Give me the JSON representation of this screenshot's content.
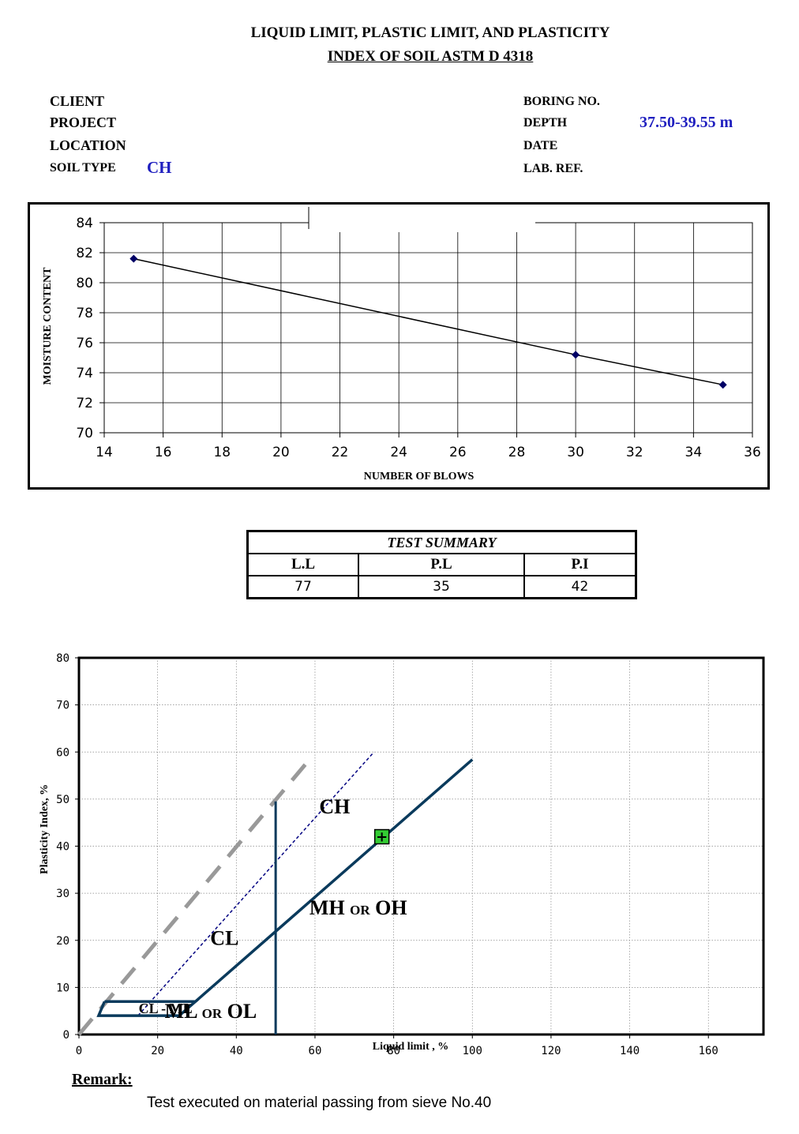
{
  "header": {
    "title_line1": "LIQUID LIMIT, PLASTIC LIMIT, AND PLASTICITY",
    "title_line2": "INDEX OF SOIL ASTM  D 4318"
  },
  "info": {
    "client_label": "CLIENT",
    "project_label": "PROJECT",
    "location_label": "LOCATION",
    "soil_type_label": "SOIL TYPE",
    "soil_type_value": "CH",
    "boring_label": "BORING NO.",
    "depth_label": "DEPTH",
    "depth_value": "37.50-39.55 m",
    "date_label": "DATE",
    "lab_ref_label": "LAB. REF."
  },
  "summary": {
    "title": "TEST SUMMARY",
    "ll_label": "L.L",
    "pl_label": "P.L",
    "pi_label": "P.I",
    "ll_value": "77",
    "pl_value": "35",
    "pi_value": "42"
  },
  "remark": {
    "label": "Remark:",
    "text": "Test executed on material passing from sieve No.40"
  },
  "colors": {
    "flow_line": "#000000",
    "flow_marker": "#000066",
    "a_line": "#0a3a5c",
    "u_line": "#999999",
    "dotted_line": "#000080",
    "zone_label_blue": "#1f1fbf",
    "point_fill": "#33cc33"
  },
  "chart_data": [
    {
      "type": "scatter",
      "xlabel": "NUMBER OF BLOWS",
      "ylabel": "MOISTURE CONTENT",
      "xlim": [
        14,
        36
      ],
      "ylim": [
        70,
        84
      ],
      "xticks": [
        14,
        16,
        18,
        20,
        22,
        24,
        26,
        28,
        30,
        32,
        34,
        36
      ],
      "yticks": [
        70,
        72,
        74,
        76,
        78,
        80,
        82,
        84
      ],
      "grid": true,
      "series": [
        {
          "points": [
            [
              15,
              81.6
            ],
            [
              30,
              75.2
            ],
            [
              35,
              73.2
            ]
          ]
        }
      ]
    },
    {
      "type": "line",
      "xlabel": "Liquid limit , %",
      "ylabel": "Plasticity Index, %",
      "xlim": [
        0,
        174
      ],
      "ylim": [
        0,
        80
      ],
      "xticks": [
        0,
        20,
        40,
        60,
        80,
        100,
        120,
        140,
        160
      ],
      "yticks": [
        0,
        10,
        20,
        30,
        40,
        50,
        60,
        70,
        80
      ],
      "grid": true,
      "lines": {
        "a_line": [
          [
            29.6,
            7
          ],
          [
            100,
            58.4
          ]
        ],
        "u_line": [
          [
            0,
            0
          ],
          [
            59.5,
            59.3
          ]
        ],
        "dotted_line": [
          [
            15,
            4
          ],
          [
            75,
            60
          ]
        ],
        "ll50": [
          [
            50,
            0
          ],
          [
            50,
            49.5
          ]
        ],
        "clml_zone": [
          [
            6.5,
            7
          ],
          [
            29.6,
            7
          ],
          [
            25.5,
            4
          ],
          [
            5,
            4
          ],
          [
            6.5,
            7
          ]
        ]
      },
      "zones": [
        {
          "label": "CH",
          "x": 65,
          "y": 47
        },
        {
          "label": "CL",
          "x": 37,
          "y": 19
        },
        {
          "label": "MH",
          "suffix": "OH",
          "joiner": "OR",
          "x": 71,
          "y": 25.5
        },
        {
          "label": "ML",
          "suffix": "OL",
          "joiner": "OR",
          "x": 33.5,
          "y": 3.5
        },
        {
          "label": "CL - ML",
          "x": 22,
          "y": 4.5
        }
      ],
      "sample_point": {
        "ll": 77,
        "pi": 42
      }
    }
  ]
}
